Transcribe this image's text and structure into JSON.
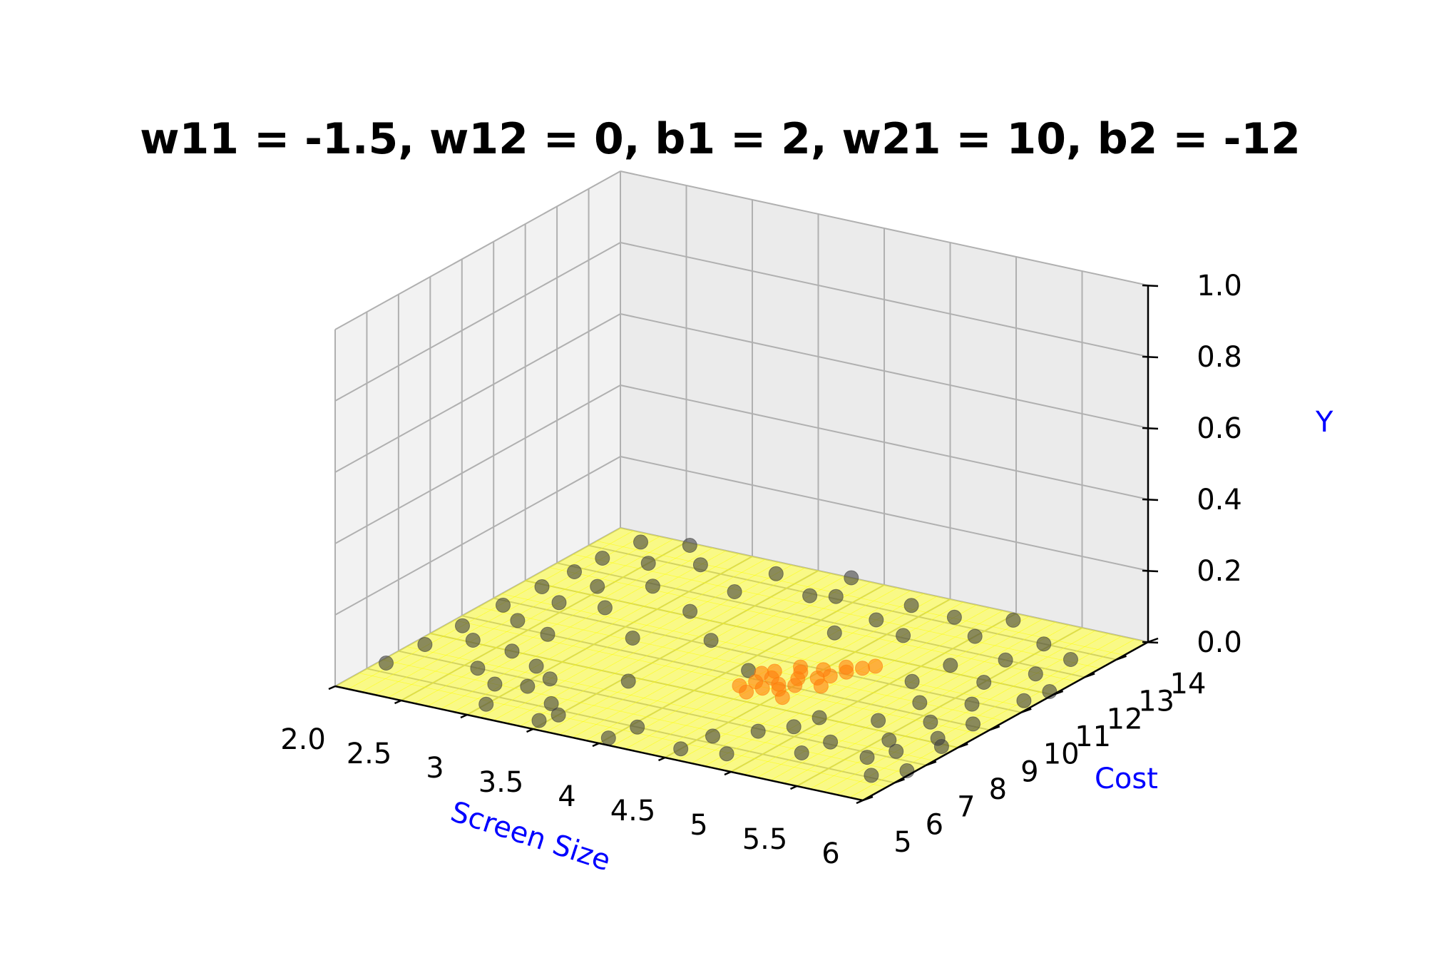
{
  "chart_data": {
    "type": "scatter",
    "title": "w11 = -1.5, w12 = 0, b1 = 2, w21 = 10, b2 = -12",
    "xlabel": "Screen Size",
    "ylabel": "Cost",
    "zlabel": "Y",
    "x_ticks": [
      "2.0",
      "2.5",
      "3",
      "3.5",
      "4",
      "4.5",
      "5",
      "5.5",
      "6"
    ],
    "y_ticks": [
      "5",
      "6",
      "7",
      "8",
      "9",
      "10",
      "11",
      "12",
      "13",
      "14"
    ],
    "z_ticks": [
      "0.0",
      "0.2",
      "0.4",
      "0.6",
      "0.8",
      "1.0"
    ],
    "xlim": [
      2,
      6
    ],
    "ylim": [
      5,
      14
    ],
    "zlim": [
      0,
      1
    ],
    "grid": true,
    "surface": {
      "color": "#ffff00",
      "description_formula": "sigmoid(w21*sigmoid(w11*x + w12*y + b1) + b2)",
      "w11": -1.5,
      "w12": 0,
      "b1": 2,
      "w21": 10,
      "b2": -12
    },
    "colors": {
      "points": "#404040",
      "orange_points": "#ff7f0e",
      "surface": "#ffff00",
      "axis_label": "#0000ff"
    },
    "series": [
      {
        "color": "#404040",
        "points": [
          [
            2.05,
            6.4,
            0
          ],
          [
            2.08,
            7.5,
            0
          ],
          [
            2.1,
            8.6,
            0
          ],
          [
            2.12,
            9.8,
            0
          ],
          [
            2.15,
            10.9,
            0
          ],
          [
            2.18,
            11.8,
            0
          ],
          [
            2.2,
            12.6,
            0
          ],
          [
            2.25,
            13.6,
            0
          ],
          [
            2.3,
            8.1,
            0
          ],
          [
            2.35,
            9.3,
            0
          ],
          [
            2.4,
            10.4,
            0
          ],
          [
            2.45,
            11.4,
            0
          ],
          [
            2.5,
            12.8,
            0
          ],
          [
            2.55,
            13.9,
            0
          ],
          [
            2.6,
            7.0,
            0
          ],
          [
            2.62,
            8.0,
            0
          ],
          [
            2.65,
            9.0,
            0
          ],
          [
            2.7,
            10.6,
            0
          ],
          [
            2.75,
            11.9,
            0
          ],
          [
            2.8,
            13.2,
            0
          ],
          [
            2.85,
            6.5,
            0
          ],
          [
            2.9,
            7.6,
            0
          ],
          [
            3.0,
            5.6,
            0
          ],
          [
            3.05,
            6.7,
            0
          ],
          [
            3.1,
            7.2,
            0
          ],
          [
            3.15,
            9.6,
            0
          ],
          [
            3.2,
            11.2,
            0
          ],
          [
            3.25,
            12.4,
            0
          ],
          [
            3.3,
            13.5,
            0
          ],
          [
            3.35,
            6.2,
            0
          ],
          [
            3.45,
            5.4,
            0
          ],
          [
            3.5,
            5.8,
            0
          ],
          [
            3.55,
            7.8,
            0
          ],
          [
            3.6,
            10.2,
            0
          ],
          [
            3.7,
            12.9,
            0
          ],
          [
            3.75,
            14.0,
            0
          ],
          [
            3.85,
            13.1,
            0
          ],
          [
            4.0,
            5.3,
            0
          ],
          [
            4.05,
            6.0,
            0
          ],
          [
            4.1,
            9.3,
            0
          ],
          [
            4.2,
            11.6,
            0
          ],
          [
            4.3,
            12.5,
            0
          ],
          [
            4.35,
            13.4,
            0
          ],
          [
            4.5,
            5.5,
            0
          ],
          [
            4.55,
            6.3,
            0
          ],
          [
            4.6,
            12.1,
            0
          ],
          [
            4.7,
            13.3,
            0
          ],
          [
            4.75,
            6.9,
            0
          ],
          [
            4.8,
            5.7,
            0
          ],
          [
            4.9,
            7.4,
            0
          ],
          [
            4.95,
            8.0,
            0
          ],
          [
            5.0,
            12.7,
            0
          ],
          [
            5.05,
            13.7,
            0
          ],
          [
            5.1,
            10.3,
            0
          ],
          [
            5.15,
            11.3,
            0
          ],
          [
            5.2,
            6.4,
            0
          ],
          [
            5.25,
            7.1,
            0
          ],
          [
            5.3,
            8.4,
            0
          ],
          [
            5.35,
            9.5,
            0
          ],
          [
            5.4,
            12.0,
            0
          ],
          [
            5.45,
            13.0,
            0
          ],
          [
            5.5,
            10.9,
            0
          ],
          [
            5.55,
            7.7,
            0
          ],
          [
            5.6,
            8.8,
            0
          ],
          [
            5.65,
            9.9,
            0
          ],
          [
            5.7,
            11.7,
            0
          ],
          [
            5.75,
            12.6,
            0
          ],
          [
            5.8,
            8.2,
            0
          ],
          [
            5.85,
            9.1,
            0
          ],
          [
            5.9,
            10.5,
            0
          ],
          [
            5.95,
            11.1,
            0
          ],
          [
            5.6,
            6.8,
            0
          ],
          [
            5.7,
            7.3,
            0
          ],
          [
            5.8,
            6.1,
            0
          ],
          [
            5.9,
            7.9,
            0
          ],
          [
            5.95,
            6.6,
            0
          ]
        ]
      },
      {
        "color": "#ff7f0e",
        "points": [
          [
            4.2,
            8.6,
            0
          ],
          [
            4.25,
            8.9,
            0
          ],
          [
            4.3,
            9.2,
            0
          ],
          [
            4.35,
            8.7,
            0
          ],
          [
            4.4,
            9.0,
            0
          ],
          [
            4.45,
            9.4,
            0
          ],
          [
            4.5,
            9.1,
            0
          ],
          [
            4.55,
            9.6,
            0
          ],
          [
            4.6,
            9.8,
            0
          ],
          [
            4.65,
            10.1,
            0
          ],
          [
            4.7,
            10.4,
            0
          ],
          [
            4.75,
            10.6,
            0
          ],
          [
            4.4,
            9.7,
            0
          ],
          [
            4.5,
            10.0,
            0
          ],
          [
            4.3,
            8.4,
            0
          ],
          [
            4.35,
            9.9,
            0
          ],
          [
            4.6,
            10.3,
            0
          ],
          [
            4.2,
            9.3,
            0
          ],
          [
            4.25,
            9.5,
            0
          ],
          [
            4.45,
            8.8,
            0
          ],
          [
            4.55,
            8.5,
            0
          ],
          [
            4.65,
            9.3,
            0
          ]
        ]
      }
    ]
  }
}
